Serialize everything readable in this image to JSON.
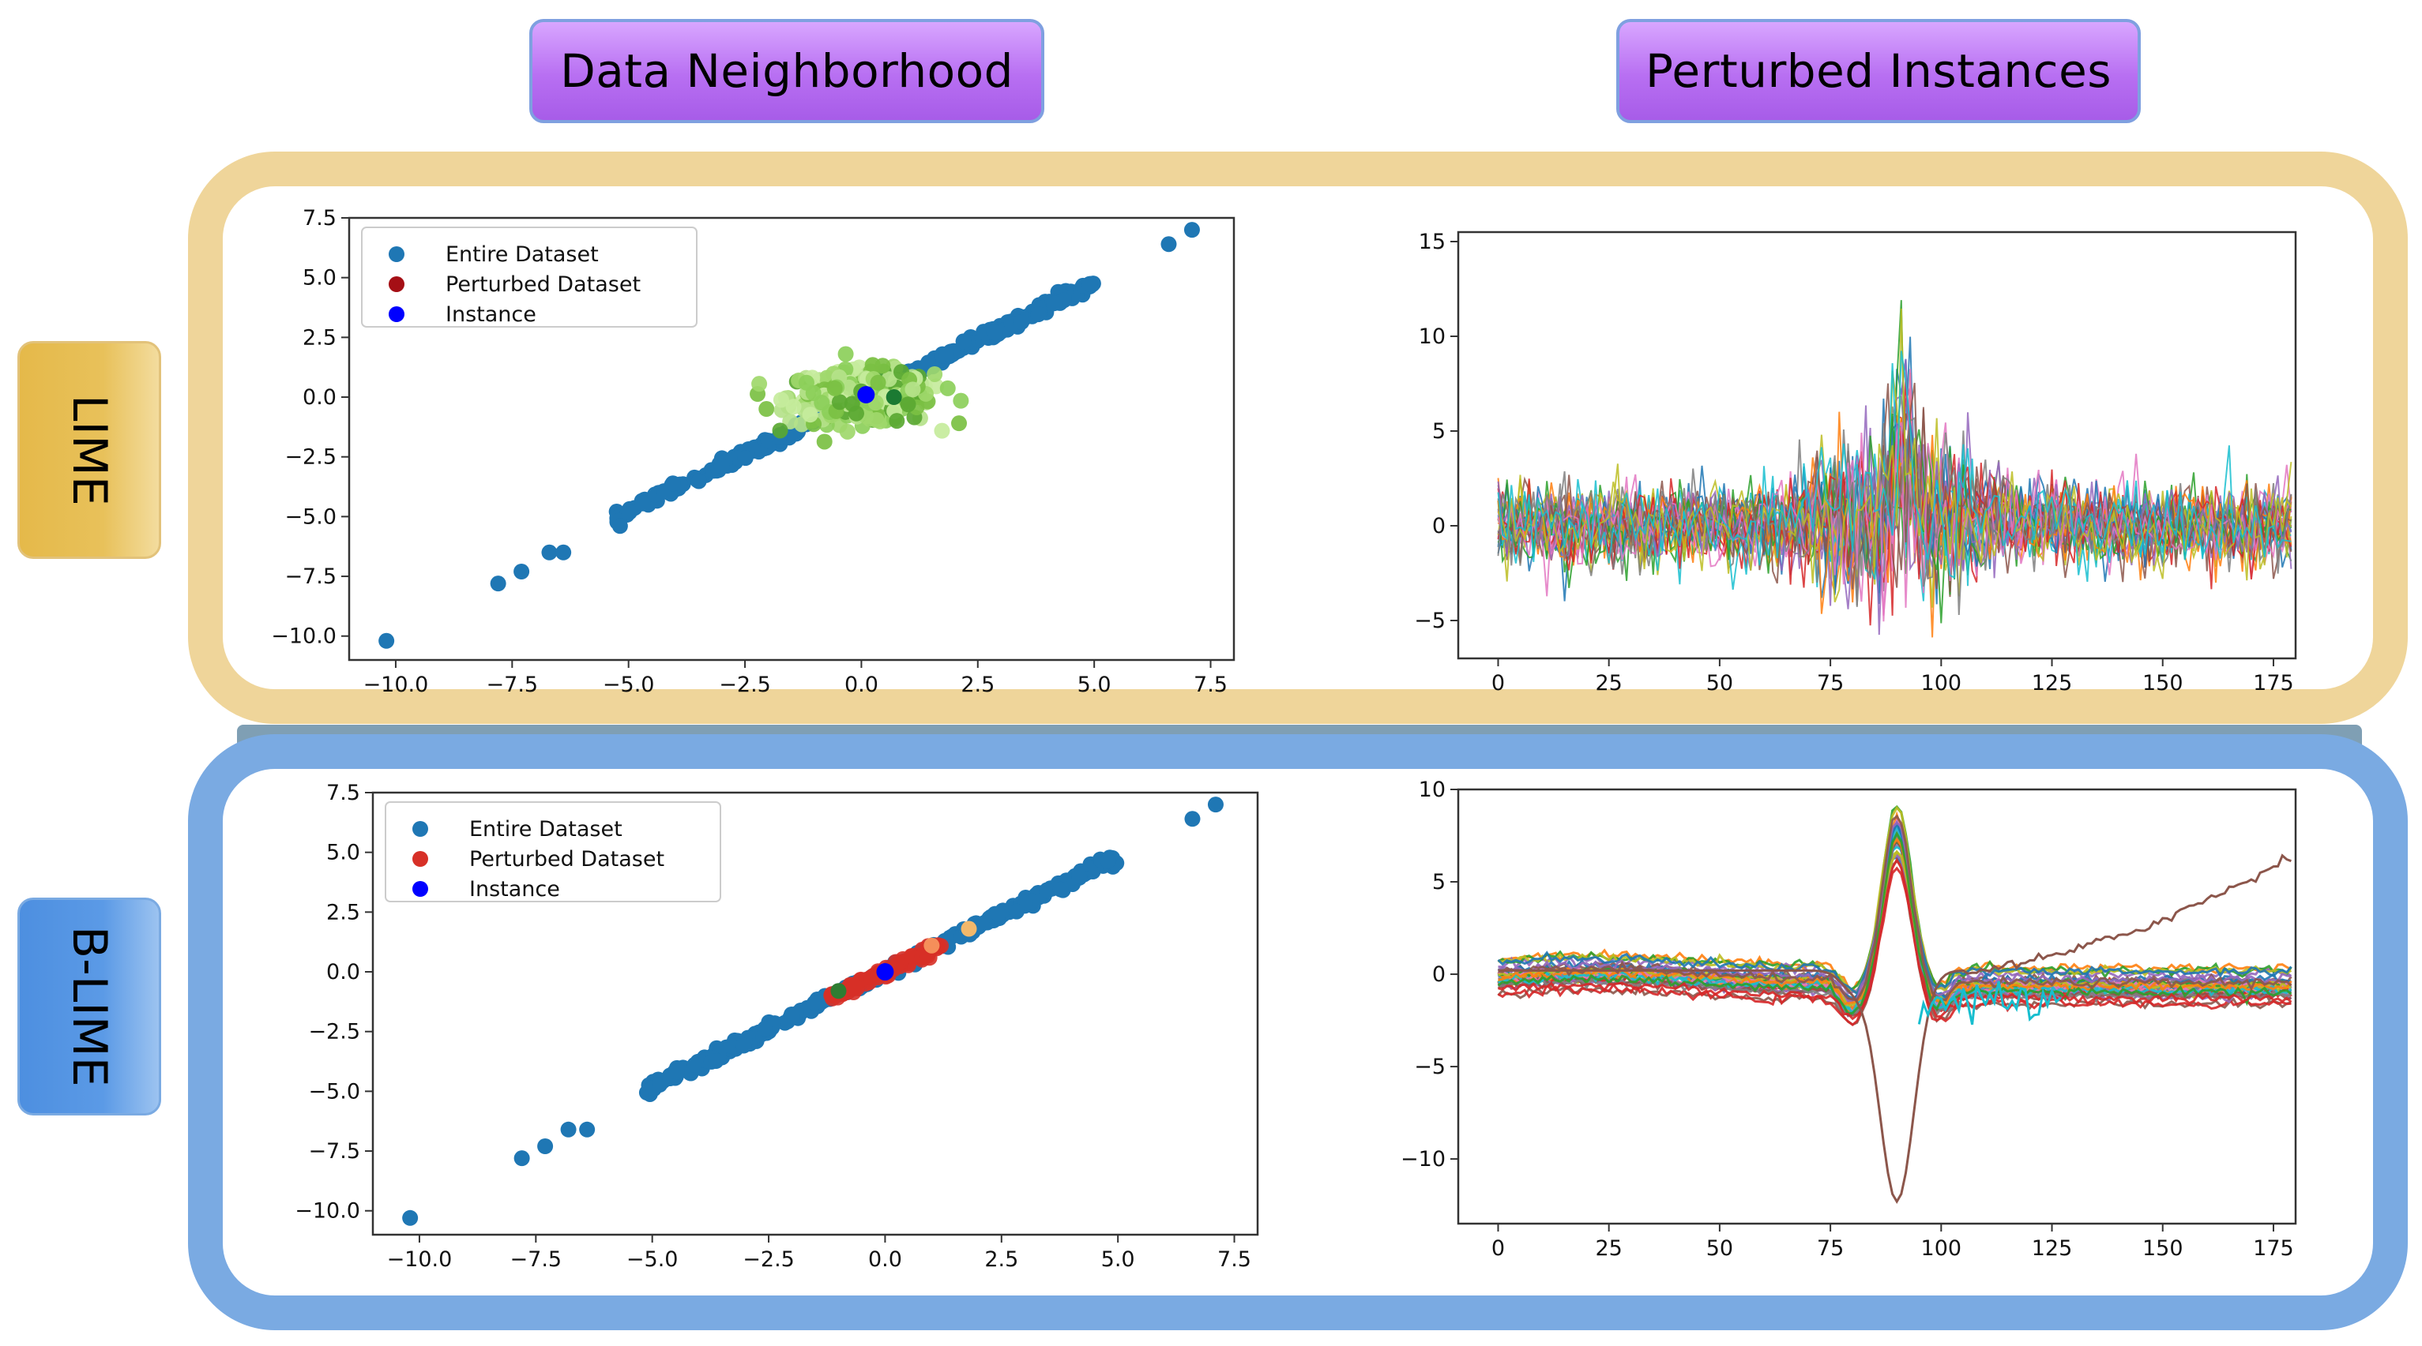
{
  "headers": {
    "left": "Data Neighborhood",
    "right": "Perturbed Instances"
  },
  "rows": {
    "lime": "LIME",
    "blime": "B-LIME"
  },
  "colors": {
    "entire": "#1f77b4",
    "perturbed_lime": "#a50f15",
    "perturbed_blime": "#d73027",
    "instance": "#0000ff",
    "lime_cluster": "#7bc043",
    "lime_border": "#efd59a",
    "blime_border": "#7aaae2"
  },
  "chart_data": [
    {
      "id": "lime-scatter",
      "type": "scatter",
      "xlim": [
        -11,
        8
      ],
      "ylim": [
        -11,
        7.5
      ],
      "xticks": [
        -10.0,
        -7.5,
        -5.0,
        -2.5,
        0.0,
        2.5,
        5.0,
        7.5
      ],
      "yticks": [
        -10.0,
        -7.5,
        -5.0,
        -2.5,
        0.0,
        2.5,
        5.0,
        7.5
      ],
      "xtick_labels": [
        "−10.0",
        "−7.5",
        "−5.0",
        "−2.5",
        "0.0",
        "2.5",
        "5.0",
        "7.5"
      ],
      "ytick_labels": [
        "−10.0",
        "−7.5",
        "−5.0",
        "−2.5",
        "0.0",
        "2.5",
        "5.0",
        "7.5"
      ],
      "legend": [
        "Entire Dataset",
        "Perturbed Dataset",
        "Instance"
      ],
      "outliers": [
        [
          -10.2,
          -10.2
        ],
        [
          -7.8,
          -7.8
        ],
        [
          -7.3,
          -7.3
        ],
        [
          -6.7,
          -6.5
        ],
        [
          -6.4,
          -6.5
        ],
        [
          6.6,
          6.4
        ],
        [
          7.1,
          7.0
        ]
      ],
      "line_range": [
        -5.3,
        5.0
      ],
      "cluster_center": [
        0.0,
        0.0
      ],
      "cluster_spread": [
        1.4,
        1.0
      ],
      "instance": [
        0.1,
        0.1
      ]
    },
    {
      "id": "lime-lines",
      "type": "line",
      "xlim": [
        -9,
        180
      ],
      "ylim": [
        -7,
        15.5
      ],
      "xticks": [
        0,
        25,
        50,
        75,
        100,
        125,
        150,
        175
      ],
      "yticks": [
        -5,
        0,
        5,
        10,
        15
      ],
      "xtick_labels": [
        "0",
        "25",
        "50",
        "75",
        "100",
        "125",
        "150",
        "175"
      ],
      "ytick_labels": [
        "−5",
        "0",
        "5",
        "10",
        "15"
      ],
      "n_series": 10,
      "n_points": 180
    },
    {
      "id": "blime-scatter",
      "type": "scatter",
      "xlim": [
        -11,
        8
      ],
      "ylim": [
        -11,
        7.5
      ],
      "xticks": [
        -10.0,
        -7.5,
        -5.0,
        -2.5,
        0.0,
        2.5,
        5.0,
        7.5
      ],
      "yticks": [
        -10.0,
        -7.5,
        -5.0,
        -2.5,
        0.0,
        2.5,
        5.0,
        7.5
      ],
      "xtick_labels": [
        "−10.0",
        "−7.5",
        "−5.0",
        "−2.5",
        "0.0",
        "2.5",
        "5.0",
        "7.5"
      ],
      "ytick_labels": [
        "−10.0",
        "−7.5",
        "−5.0",
        "−2.5",
        "0.0",
        "2.5",
        "5.0",
        "7.5"
      ],
      "legend": [
        "Entire Dataset",
        "Perturbed Dataset",
        "Instance"
      ],
      "outliers": [
        [
          -10.2,
          -10.3
        ],
        [
          -7.8,
          -7.8
        ],
        [
          -7.3,
          -7.3
        ],
        [
          -6.8,
          -6.6
        ],
        [
          -6.4,
          -6.6
        ],
        [
          6.6,
          6.4
        ],
        [
          7.1,
          7.0
        ]
      ],
      "line_range": [
        -5.3,
        5.0
      ],
      "perturbed_range": [
        -1.2,
        1.2
      ],
      "extra_points": [
        [
          1.8,
          1.8
        ],
        [
          1.0,
          1.1
        ],
        [
          -1.0,
          -0.8
        ]
      ],
      "instance": [
        0.0,
        0.0
      ]
    },
    {
      "id": "blime-lines",
      "type": "line",
      "xlim": [
        -9,
        180
      ],
      "ylim": [
        -13.5,
        10
      ],
      "xticks": [
        0,
        25,
        50,
        75,
        100,
        125,
        150,
        175
      ],
      "yticks": [
        -10,
        -5,
        0,
        5,
        10
      ],
      "xtick_labels": [
        "0",
        "25",
        "50",
        "75",
        "100",
        "125",
        "150",
        "175"
      ],
      "ytick_labels": [
        "−10",
        "−5",
        "0",
        "5",
        "10"
      ],
      "n_series": 12,
      "n_points": 180,
      "anomaly_min": -12.5,
      "drift_end": 6.5
    }
  ]
}
